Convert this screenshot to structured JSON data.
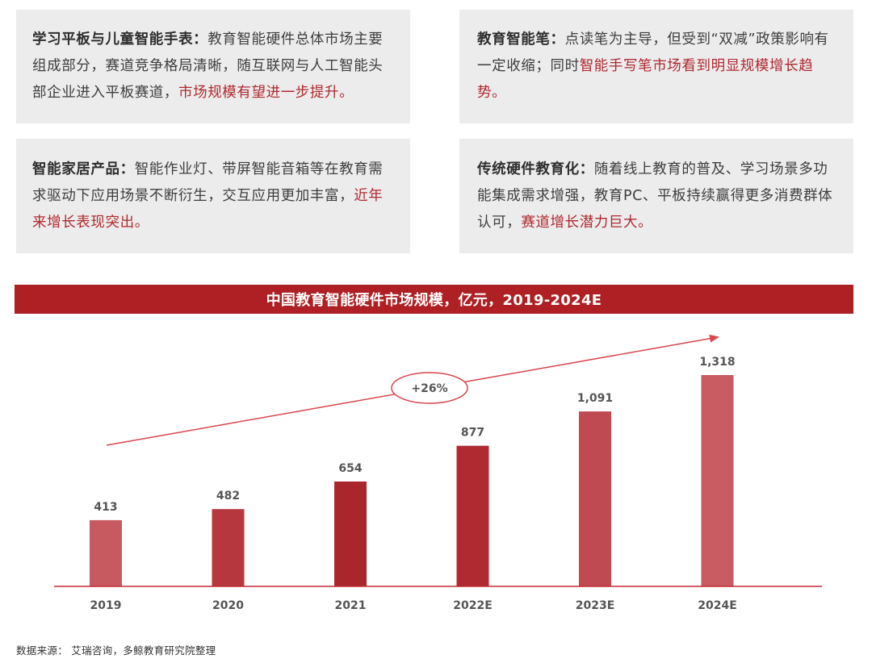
{
  "cards": [
    {
      "title": "学习平板与儿童智能手表：",
      "body": "教育智能硬件总体市场主要组成部分，赛道竞争格局清晰，随互联网与人工智能头部企业进入平板赛道，",
      "highlight": "市场规模有望进一步提升。",
      "tail": ""
    },
    {
      "title": "教育智能笔：",
      "body": "点读笔为主导，但受到“双减”政策影响有一定收缩；同时",
      "highlight": "智能手写笔市场看到明显规模增长趋势。",
      "tail": ""
    },
    {
      "title": "智能家居产品：",
      "body": "智能作业灯、带屏智能音箱等在教育需求驱动下应用场景不断衍生，交互应用更加丰富，",
      "highlight": "近年来增长表现突出。",
      "tail": ""
    },
    {
      "title": "传统硬件教育化：",
      "body": "随着线上教育的普及、学习场景多功能集成需求增强，教育PC、平板持续赢得更多消费群体认可，",
      "highlight": "赛道增长潜力巨大。",
      "tail": ""
    }
  ],
  "chart_data": {
    "type": "bar",
    "title": "中国教育智能硬件市场规模，亿元，2019-2024E",
    "categories": [
      "2019",
      "2020",
      "2021",
      "2022E",
      "2023E",
      "2024E"
    ],
    "values": [
      413,
      482,
      654,
      877,
      1091,
      1318
    ],
    "value_labels": [
      "413",
      "482",
      "654",
      "877",
      "1,091",
      "1,318"
    ],
    "ylim": [
      0,
      1400
    ],
    "bar_colors": [
      "#c75a61",
      "#b6373e",
      "#a8262c",
      "#b02a31",
      "#c04a51",
      "#c85c62"
    ],
    "annotation": "+26%",
    "grid": false
  },
  "source": "数据来源： 艾瑞咨询，多鲸教育研究院整理",
  "colors": {
    "accent": "#af2024",
    "highlight": "#b0282e",
    "card_bg": "#ececec"
  }
}
